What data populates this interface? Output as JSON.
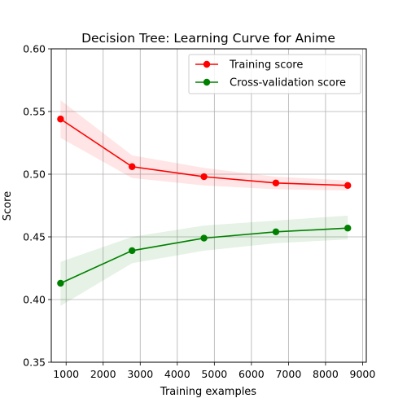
{
  "chart_data": {
    "type": "line",
    "title": "Decision Tree: Learning Curve for Anime",
    "xlabel": "Training examples",
    "ylabel": "Score",
    "xlim": [
      600,
      9100
    ],
    "ylim": [
      0.35,
      0.6
    ],
    "xticks": [
      1000,
      2000,
      3000,
      4000,
      5000,
      6000,
      7000,
      8000,
      9000
    ],
    "yticks": [
      0.35,
      0.4,
      0.45,
      0.5,
      0.55,
      0.6
    ],
    "grid": true,
    "legend_position": "top-right",
    "x": [
      850,
      2780,
      4720,
      6660,
      8600
    ],
    "series": [
      {
        "name": "Training score",
        "color": "#ff0000",
        "values": [
          0.544,
          0.506,
          0.498,
          0.493,
          0.491
        ],
        "lower": [
          0.529,
          0.497,
          0.491,
          0.488,
          0.487
        ],
        "upper": [
          0.559,
          0.515,
          0.505,
          0.498,
          0.495
        ]
      },
      {
        "name": "Cross-validation score",
        "color": "#008000",
        "values": [
          0.413,
          0.439,
          0.449,
          0.454,
          0.457
        ],
        "lower": [
          0.395,
          0.429,
          0.439,
          0.445,
          0.448
        ],
        "upper": [
          0.43,
          0.45,
          0.459,
          0.463,
          0.467
        ]
      }
    ]
  }
}
